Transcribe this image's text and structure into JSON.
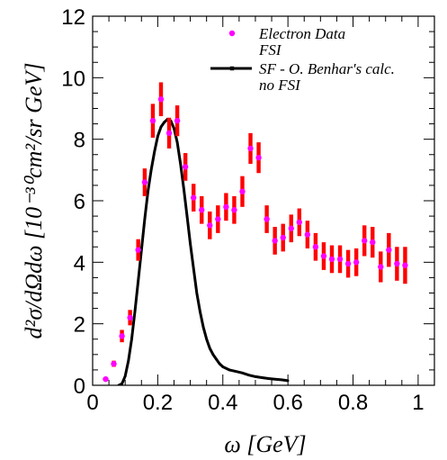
{
  "chart_data": {
    "type": "scatter",
    "xlim": [
      0,
      1.05
    ],
    "ylim": [
      0,
      12
    ],
    "x_ticks": [
      0,
      0.2,
      0.4,
      0.6,
      0.8,
      1
    ],
    "x_tick_labels": [
      "0",
      "0.2",
      "0.4",
      "0.6",
      "0.8",
      "1"
    ],
    "y_ticks": [
      0,
      2,
      4,
      6,
      8,
      10,
      12
    ],
    "y_tick_labels": [
      "0",
      "2",
      "4",
      "6",
      "8",
      "10",
      "12"
    ],
    "xlabel": "ω [GeV]",
    "ylabel": "d²σ/dΩdω [10⁻³⁰cm²/sr GeV]",
    "grid": false,
    "legend_position": "top-right",
    "legend": [
      {
        "label": "Electron Data",
        "label_line2": "FSI",
        "marker": "magenta-dot"
      },
      {
        "label": "SF - O. Benhar's calc.",
        "label_line2": "no FSI",
        "marker": "black-line"
      }
    ],
    "series": [
      {
        "name": "Electron Data FSI",
        "kind": "points_with_errors",
        "color": "#ff00ff",
        "error_color": "#ff0000",
        "points": [
          {
            "x": 0.04,
            "y": 0.2,
            "err": 0.05
          },
          {
            "x": 0.065,
            "y": 0.7,
            "err": 0.1
          },
          {
            "x": 0.09,
            "y": 1.6,
            "err": 0.2
          },
          {
            "x": 0.115,
            "y": 2.2,
            "err": 0.25
          },
          {
            "x": 0.14,
            "y": 4.4,
            "err": 0.35
          },
          {
            "x": 0.16,
            "y": 6.6,
            "err": 0.45
          },
          {
            "x": 0.185,
            "y": 8.6,
            "err": 0.55
          },
          {
            "x": 0.21,
            "y": 9.3,
            "err": 0.55
          },
          {
            "x": 0.235,
            "y": 8.2,
            "err": 0.5
          },
          {
            "x": 0.26,
            "y": 8.6,
            "err": 0.5
          },
          {
            "x": 0.285,
            "y": 7.1,
            "err": 0.45
          },
          {
            "x": 0.31,
            "y": 6.1,
            "err": 0.45
          },
          {
            "x": 0.335,
            "y": 5.7,
            "err": 0.45
          },
          {
            "x": 0.36,
            "y": 5.2,
            "err": 0.45
          },
          {
            "x": 0.385,
            "y": 5.4,
            "err": 0.45
          },
          {
            "x": 0.41,
            "y": 5.8,
            "err": 0.45
          },
          {
            "x": 0.435,
            "y": 5.7,
            "err": 0.45
          },
          {
            "x": 0.46,
            "y": 6.3,
            "err": 0.5
          },
          {
            "x": 0.485,
            "y": 7.7,
            "err": 0.5
          },
          {
            "x": 0.51,
            "y": 7.4,
            "err": 0.5
          },
          {
            "x": 0.535,
            "y": 5.4,
            "err": 0.45
          },
          {
            "x": 0.56,
            "y": 4.7,
            "err": 0.45
          },
          {
            "x": 0.585,
            "y": 4.8,
            "err": 0.45
          },
          {
            "x": 0.61,
            "y": 5.1,
            "err": 0.45
          },
          {
            "x": 0.635,
            "y": 5.3,
            "err": 0.45
          },
          {
            "x": 0.66,
            "y": 4.9,
            "err": 0.45
          },
          {
            "x": 0.685,
            "y": 4.5,
            "err": 0.45
          },
          {
            "x": 0.71,
            "y": 4.2,
            "err": 0.45
          },
          {
            "x": 0.735,
            "y": 4.1,
            "err": 0.45
          },
          {
            "x": 0.76,
            "y": 4.1,
            "err": 0.45
          },
          {
            "x": 0.785,
            "y": 3.95,
            "err": 0.45
          },
          {
            "x": 0.81,
            "y": 4.0,
            "err": 0.45
          },
          {
            "x": 0.835,
            "y": 4.7,
            "err": 0.5
          },
          {
            "x": 0.86,
            "y": 4.65,
            "err": 0.5
          },
          {
            "x": 0.885,
            "y": 3.85,
            "err": 0.5
          },
          {
            "x": 0.91,
            "y": 4.4,
            "err": 0.55
          },
          {
            "x": 0.935,
            "y": 3.95,
            "err": 0.55
          },
          {
            "x": 0.96,
            "y": 3.9,
            "err": 0.6
          }
        ]
      },
      {
        "name": "SF - O. Benhar's calc. no FSI",
        "kind": "line",
        "color": "#000000",
        "x": [
          0.08,
          0.09,
          0.1,
          0.11,
          0.12,
          0.13,
          0.14,
          0.15,
          0.16,
          0.17,
          0.18,
          0.19,
          0.2,
          0.21,
          0.22,
          0.23,
          0.24,
          0.25,
          0.26,
          0.27,
          0.28,
          0.29,
          0.3,
          0.31,
          0.32,
          0.33,
          0.34,
          0.35,
          0.36,
          0.37,
          0.38,
          0.39,
          0.4,
          0.42,
          0.44,
          0.46,
          0.48,
          0.5,
          0.52,
          0.54,
          0.56,
          0.58,
          0.6
        ],
        "y": [
          0.0,
          0.05,
          0.3,
          0.8,
          1.5,
          2.4,
          3.4,
          4.4,
          5.4,
          6.3,
          7.0,
          7.6,
          8.1,
          8.4,
          8.55,
          8.65,
          8.6,
          8.35,
          7.9,
          7.2,
          6.4,
          5.5,
          4.6,
          3.8,
          3.0,
          2.4,
          1.9,
          1.5,
          1.2,
          1.0,
          0.85,
          0.7,
          0.6,
          0.5,
          0.45,
          0.4,
          0.33,
          0.28,
          0.25,
          0.22,
          0.2,
          0.18,
          0.15
        ]
      }
    ]
  }
}
